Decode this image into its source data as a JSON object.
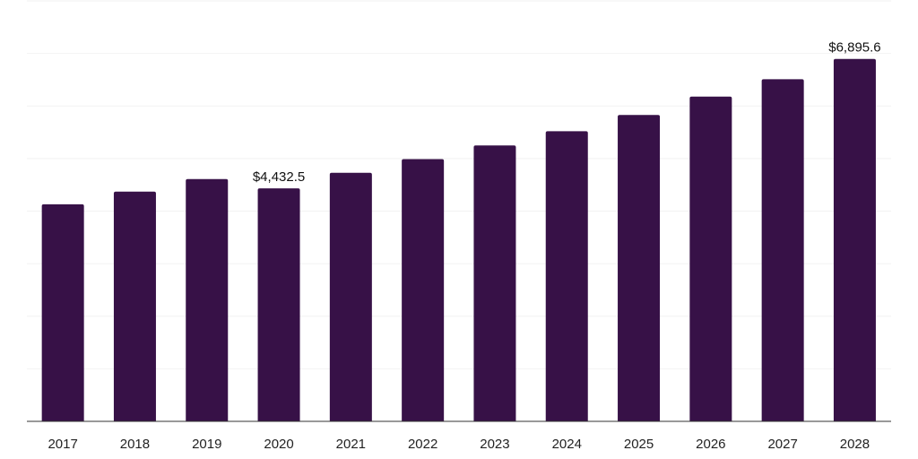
{
  "chart_data": {
    "type": "bar",
    "categories": [
      "2017",
      "2018",
      "2019",
      "2020",
      "2021",
      "2022",
      "2023",
      "2024",
      "2025",
      "2026",
      "2027",
      "2028"
    ],
    "values": [
      4130,
      4370,
      4610,
      4432.5,
      4730,
      4990,
      5250,
      5520,
      5830,
      6180,
      6510,
      6895.6
    ],
    "data_labels": [
      {
        "category": "2020",
        "text": "$4,432.5"
      },
      {
        "category": "2028",
        "text": "$6,895.6"
      }
    ],
    "title": "",
    "xlabel": "",
    "ylabel": "",
    "ylim": [
      0,
      8000
    ],
    "gridlines_every": 1000,
    "grid": true,
    "legend": "none",
    "bar_color": "#371147"
  }
}
